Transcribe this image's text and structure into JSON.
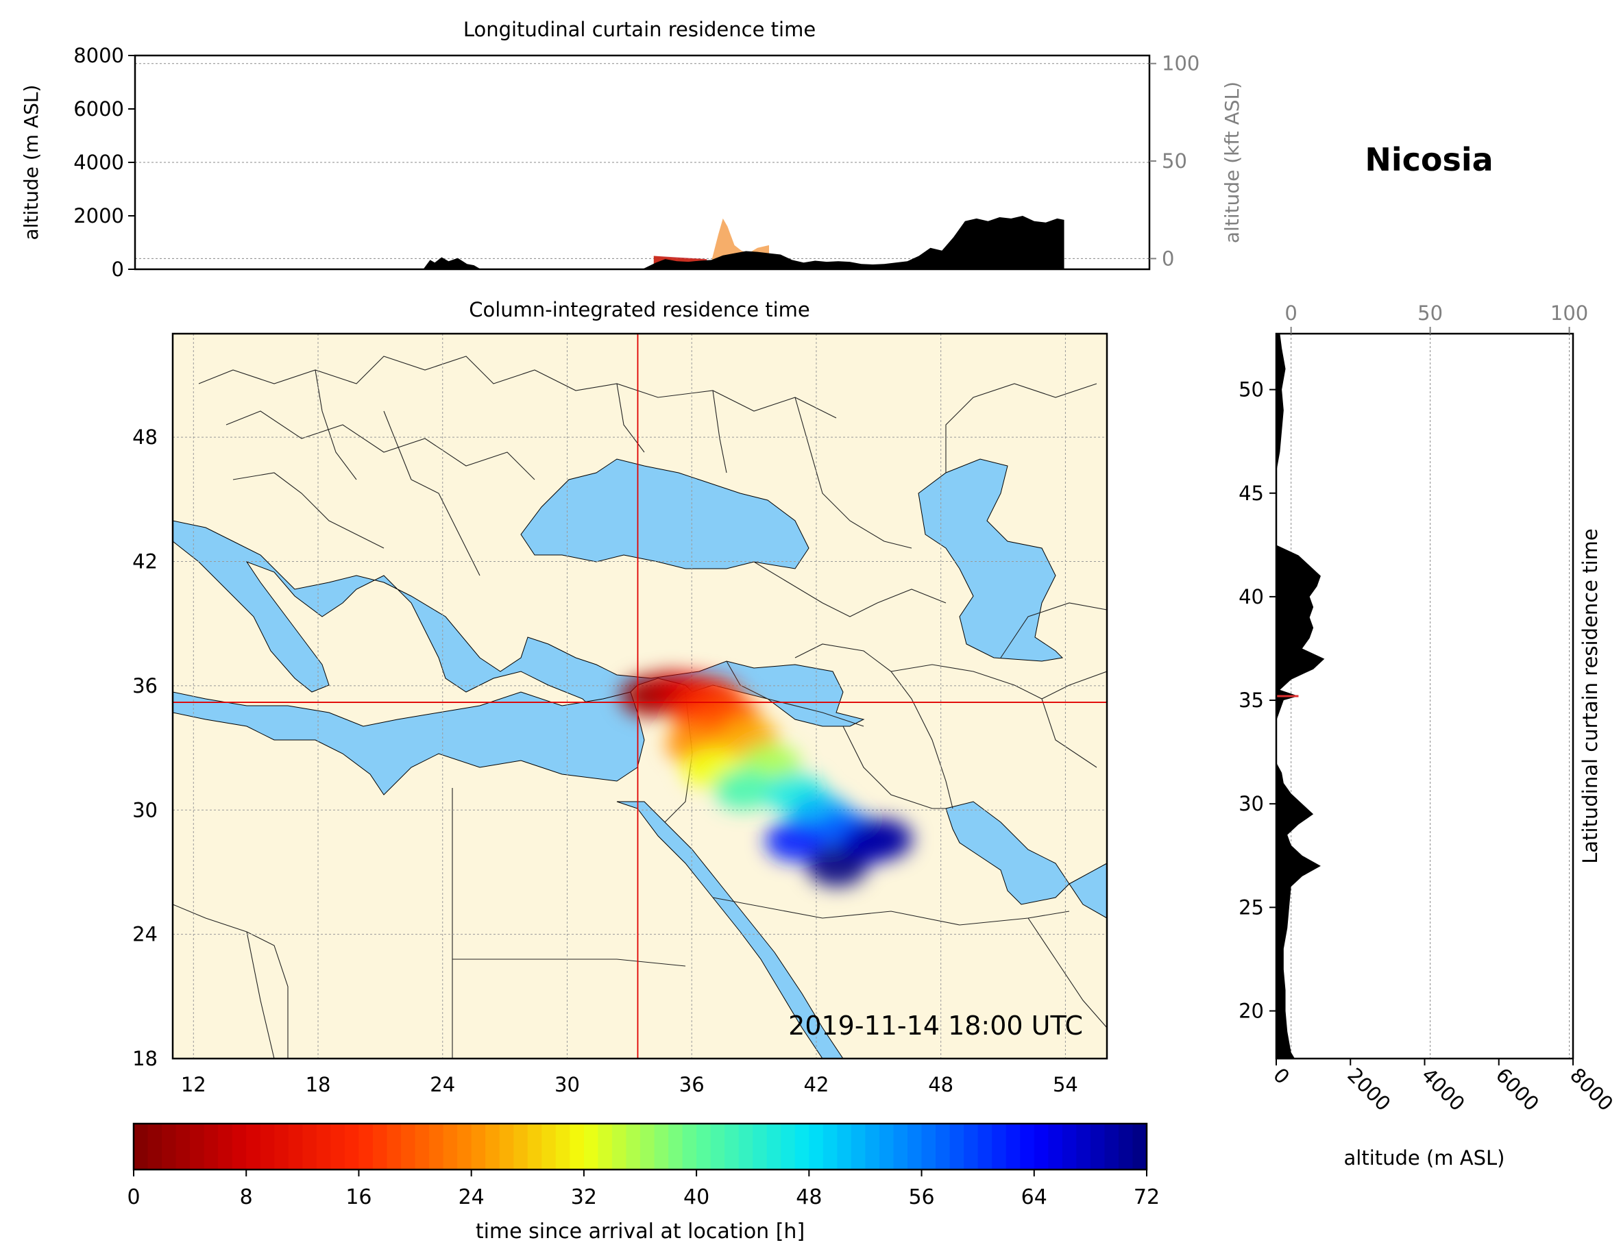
{
  "station_name": "Nicosia",
  "timestamp": "2019-11-14 18:00 UTC",
  "chart_data": [
    {
      "type": "area",
      "title": "Longitudinal curtain residence time",
      "ylabel": "altitude (m ASL)",
      "ylabel_right": "altitude (kft ASL)",
      "xlim": [
        11,
        55
      ],
      "ylim": [
        0,
        8000
      ],
      "yticks": [
        "0",
        "2000",
        "4000",
        "6000",
        "8000"
      ],
      "yticks_right": [
        "0",
        "50",
        "100"
      ],
      "grid": true,
      "terrain_profile": {
        "x": [
          23.5,
          23.8,
          24,
          24.3,
          24.6,
          25,
          25.4,
          25.7,
          26,
          33,
          33.6,
          34,
          34.5,
          35,
          35.5,
          36,
          36.5,
          37,
          37.5,
          38,
          38.5,
          39,
          39.5,
          40,
          40.5,
          41,
          41.5,
          42,
          42.5,
          43,
          43.5,
          44,
          44.5,
          45,
          45.5,
          46,
          46.5,
          47,
          47.5,
          48,
          48.5,
          49,
          49.5,
          50,
          50.5,
          51,
          51.3,
          51.3
        ],
        "y": [
          0,
          350,
          250,
          450,
          300,
          420,
          200,
          150,
          0,
          0,
          250,
          380,
          300,
          280,
          320,
          350,
          520,
          600,
          680,
          650,
          600,
          550,
          350,
          250,
          320,
          280,
          300,
          280,
          200,
          180,
          200,
          250,
          300,
          500,
          800,
          700,
          1200,
          1800,
          1900,
          1800,
          1950,
          1900,
          2000,
          1800,
          1750,
          1900,
          1850,
          0
        ]
      },
      "residence_profile": {
        "x": [
          33.5,
          34,
          34.5,
          35,
          35.5,
          36,
          36.3,
          36.5,
          36.7,
          37,
          37.3,
          37.6,
          38,
          38.5
        ],
        "y": [
          500,
          450,
          400,
          380,
          380,
          300,
          1300,
          1900,
          1600,
          900,
          700,
          600,
          800,
          900
        ]
      }
    },
    {
      "type": "heatmap",
      "title": "Column-integrated residence time",
      "xlim": [
        11,
        56
      ],
      "ylim": [
        18,
        53
      ],
      "xticks": [
        "12",
        "18",
        "24",
        "30",
        "36",
        "42",
        "48",
        "54"
      ],
      "yticks": [
        "18",
        "24",
        "30",
        "36",
        "42",
        "48"
      ],
      "crosshair": {
        "lon": 33.4,
        "lat": 35.2
      },
      "plume": [
        {
          "lon": 34.0,
          "lat": 35.5,
          "hours": 2
        },
        {
          "lon": 35.0,
          "lat": 35.7,
          "hours": 5
        },
        {
          "lon": 36.0,
          "lat": 35.6,
          "hours": 9
        },
        {
          "lon": 37.0,
          "lat": 35.4,
          "hours": 13
        },
        {
          "lon": 36.5,
          "lat": 34.5,
          "hours": 17
        },
        {
          "lon": 37.8,
          "lat": 34.6,
          "hours": 19
        },
        {
          "lon": 36.2,
          "lat": 33.2,
          "hours": 24
        },
        {
          "lon": 38.7,
          "lat": 33.5,
          "hours": 26
        },
        {
          "lon": 37.0,
          "lat": 32.0,
          "hours": 32
        },
        {
          "lon": 39.8,
          "lat": 32.2,
          "hours": 36
        },
        {
          "lon": 38.5,
          "lat": 31.0,
          "hours": 42
        },
        {
          "lon": 41.0,
          "lat": 30.8,
          "hours": 46
        },
        {
          "lon": 42.2,
          "lat": 29.8,
          "hours": 52
        },
        {
          "lon": 43.4,
          "lat": 29.0,
          "hours": 58
        },
        {
          "lon": 41.0,
          "lat": 28.5,
          "hours": 62
        },
        {
          "lon": 44.5,
          "lat": 28.4,
          "hours": 66
        },
        {
          "lon": 45.2,
          "lat": 28.6,
          "hours": 70
        },
        {
          "lon": 43.0,
          "lat": 27.3,
          "hours": 72
        }
      ]
    },
    {
      "type": "area",
      "title": "Latitudinal curtain residence time",
      "xlabel": "altitude (m ASL)",
      "xlim": [
        0,
        8000
      ],
      "ylim": [
        17.7,
        52.7
      ],
      "xticks": [
        "0",
        "2000",
        "4000",
        "6000",
        "8000"
      ],
      "xticks_top": [
        "0",
        "50",
        "100"
      ],
      "yticks": [
        "20",
        "25",
        "30",
        "35",
        "40",
        "45",
        "50"
      ],
      "terrain_profile": {
        "lat": [
          17.7,
          18,
          19,
          20,
          21,
          22,
          23,
          24,
          25,
          26,
          26.5,
          27,
          27.5,
          28,
          28.5,
          29,
          29.5,
          30,
          30.5,
          31,
          31.5,
          32,
          34,
          35,
          35.2,
          35.5,
          36,
          36.5,
          37,
          37.5,
          38,
          38.5,
          39,
          39.5,
          40,
          40.5,
          41,
          41.5,
          42,
          42.5,
          44,
          46,
          47,
          48,
          49,
          50,
          51,
          52,
          52.7
        ],
        "alt": [
          500,
          400,
          300,
          250,
          250,
          200,
          200,
          300,
          350,
          400,
          700,
          1200,
          700,
          400,
          300,
          600,
          1000,
          700,
          400,
          200,
          150,
          0,
          0,
          200,
          600,
          100,
          400,
          1000,
          1300,
          700,
          900,
          1000,
          900,
          1000,
          900,
          1100,
          1200,
          900,
          600,
          0,
          0,
          0,
          100,
          150,
          200,
          150,
          250,
          150,
          100
        ]
      },
      "residence_marker": {
        "lat": 35.2,
        "alt": 600
      }
    },
    {
      "type": "heatmap",
      "title": "",
      "xlabel": "time since arrival at location [h]",
      "xlim": [
        0,
        72
      ],
      "xticks": [
        "0",
        "8",
        "16",
        "24",
        "32",
        "40",
        "48",
        "56",
        "64",
        "72"
      ],
      "colormap": "jet_r",
      "colors": [
        "#7f0000",
        "#d40000",
        "#ff2a00",
        "#ff8c00",
        "#f2ff0d",
        "#5efc98",
        "#00e4f8",
        "#0078ff",
        "#0000ff",
        "#00007f"
      ]
    }
  ]
}
